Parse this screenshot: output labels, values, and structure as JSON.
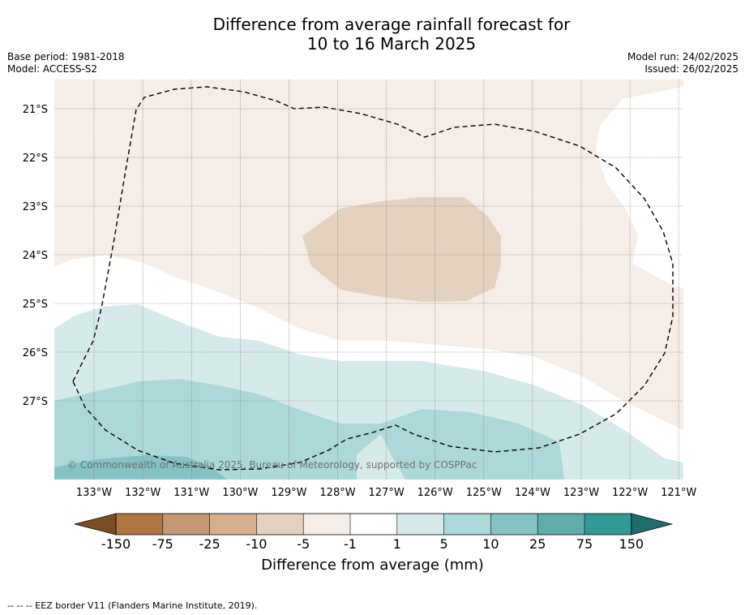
{
  "title_line1": "Difference from average rainfall forecast for",
  "title_line2": "10 to 16 March 2025",
  "base_period": "Base period: 1981-2018",
  "model": "Model: ACCESS-S2",
  "model_run": "Model run: 24/02/2025",
  "issued": "Issued: 26/02/2025",
  "copyright": "© Commonwealth of Australia 2025, Bureau of Meteorology, supported by COSPPac",
  "lat_labels": [
    "21°S",
    "22°S",
    "23°S",
    "24°S",
    "25°S",
    "26°S",
    "27°S"
  ],
  "lon_labels": [
    "133°W",
    "132°W",
    "131°W",
    "130°W",
    "129°W",
    "128°W",
    "127°W",
    "126°W",
    "125°W",
    "124°W",
    "123°W",
    "122°W",
    "121°W"
  ],
  "colorbar": {
    "title": "Difference from average (mm)",
    "tick_labels": [
      "-150",
      "-75",
      "-25",
      "-10",
      "-5",
      "-1",
      "1",
      "5",
      "10",
      "25",
      "75",
      "150"
    ],
    "colors": [
      "#7a4e24",
      "#ae7742",
      "#c39872",
      "#d6b08e",
      "#e4d2c1",
      "#f4ede8",
      "#ffffff",
      "#d6eaea",
      "#add8d8",
      "#84c3c2",
      "#5eadab",
      "#339996",
      "#1f6e6d"
    ]
  },
  "footnote": "--  --  -- EEZ border V11 (Flanders Marine Institute, 2019)."
}
